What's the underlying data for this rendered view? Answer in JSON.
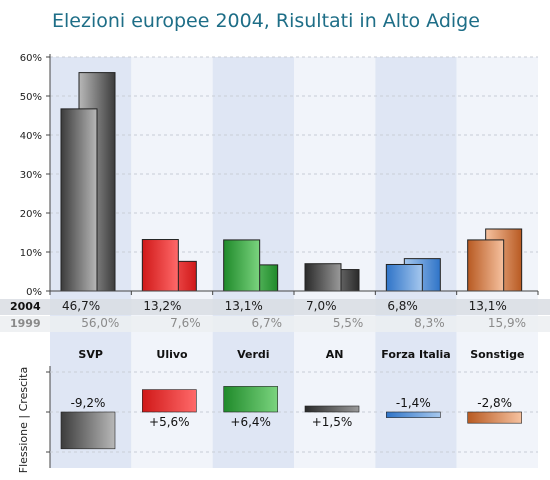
{
  "chart_data": {
    "type": "bar",
    "title": "Elezioni europee 2004, Risultati in Alto Adige",
    "categories": [
      "SVP",
      "Ulivo",
      "Verdi",
      "AN",
      "Forza Italia",
      "Sonstige"
    ],
    "series": [
      {
        "name": "2004",
        "values": [
          46.7,
          13.2,
          13.1,
          7.0,
          6.8,
          13.1
        ],
        "labels": [
          "46,7%",
          "13,2%",
          "13,1%",
          "7,0%",
          "6,8%",
          "13,1%"
        ]
      },
      {
        "name": "1999",
        "values": [
          56.0,
          7.6,
          6.7,
          5.5,
          8.3,
          15.9
        ],
        "labels": [
          "56,0%",
          "7,6%",
          "6,7%",
          "5,5%",
          "8,3%",
          "15,9%"
        ]
      }
    ],
    "ylim": [
      0,
      60
    ],
    "yticks": [
      "0%",
      "10%",
      "20%",
      "30%",
      "40%",
      "50%",
      "60%"
    ],
    "grid": true,
    "change": {
      "axis_label": "Flessione | Crescita",
      "values": [
        -9.2,
        5.6,
        6.4,
        1.5,
        -1.4,
        -2.8
      ],
      "labels": [
        "-9,2%",
        "+5,6%",
        "+6,4%",
        "+1,5%",
        "-1,4%",
        "-2,8%"
      ]
    },
    "colors": {
      "SVP": [
        "#3c3c3c",
        "#b8b8b8"
      ],
      "Ulivo": [
        "#d01818",
        "#ff6a6a"
      ],
      "Verdi": [
        "#1f8a2a",
        "#7bd47f"
      ],
      "AN": [
        "#2a2a2a",
        "#9a9a9a"
      ],
      "Forza Italia": [
        "#2f74c8",
        "#a6c8ee"
      ],
      "Sonstige": [
        "#b85a22",
        "#f6c2a0"
      ],
      "band": "#dfe6f4",
      "band_alt": "#f1f4fa",
      "title": "#1e6e87"
    }
  }
}
